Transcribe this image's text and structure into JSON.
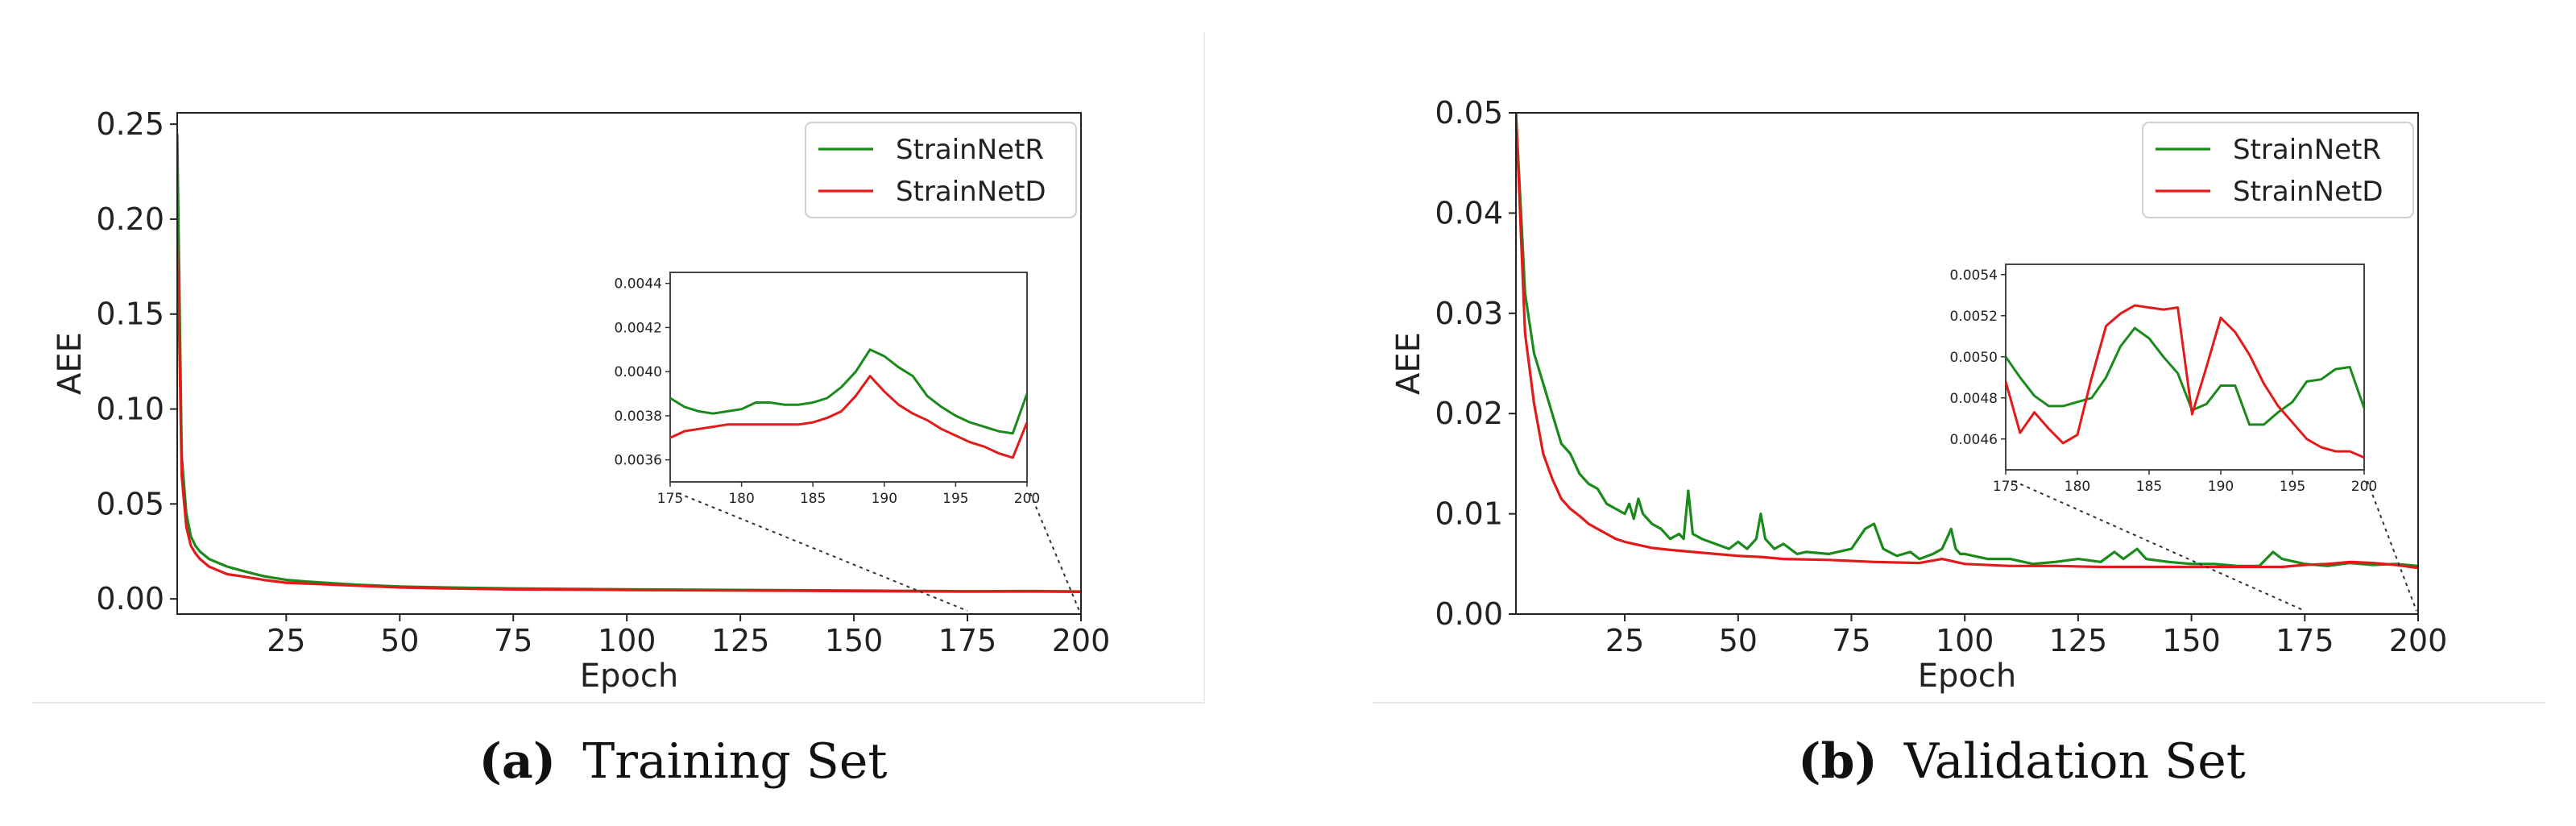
{
  "panels": [
    {
      "caption_letter": "(a)",
      "caption_text": "Training Set",
      "chart_data": {
        "type": "line",
        "title": "",
        "xlabel": "Epoch",
        "ylabel": "AEE",
        "xlim": [
          1,
          200
        ],
        "ylim": [
          -0.008,
          0.256
        ],
        "xticks": [
          25,
          50,
          75,
          100,
          125,
          150,
          175,
          200
        ],
        "xtick_labels": [
          "25",
          "50",
          "75",
          "100",
          "125",
          "150",
          "175",
          "200"
        ],
        "yticks": [
          0.0,
          0.05,
          0.1,
          0.15,
          0.2,
          0.25
        ],
        "ytick_labels": [
          "0.00",
          "0.05",
          "0.10",
          "0.15",
          "0.20",
          "0.25"
        ],
        "legend": "top-right",
        "series": [
          {
            "name": "StrainNetR",
            "color": "#1a8a1a",
            "x": [
              1,
              2,
              3,
              4,
              5,
              6,
              7,
              8,
              10,
              12,
              15,
              20,
              25,
              30,
              40,
              50,
              60,
              75,
              100,
              125,
              150,
              175,
              190,
              200
            ],
            "y": [
              0.245,
              0.075,
              0.045,
              0.033,
              0.028,
              0.025,
              0.023,
              0.021,
              0.019,
              0.017,
              0.015,
              0.012,
              0.01,
              0.009,
              0.0075,
              0.0065,
              0.006,
              0.0055,
              0.005,
              0.0047,
              0.0044,
              0.004,
              0.0041,
              0.0039
            ]
          },
          {
            "name": "StrainNetD",
            "color": "#e31a1a",
            "x": [
              1,
              2,
              3,
              4,
              5,
              6,
              7,
              8,
              10,
              12,
              15,
              20,
              25,
              30,
              40,
              50,
              60,
              75,
              100,
              125,
              150,
              175,
              190,
              200
            ],
            "y": [
              0.2,
              0.065,
              0.038,
              0.028,
              0.024,
              0.021,
              0.019,
              0.017,
              0.015,
              0.013,
              0.012,
              0.01,
              0.0085,
              0.008,
              0.007,
              0.006,
              0.0055,
              0.005,
              0.0047,
              0.0044,
              0.0041,
              0.0038,
              0.0039,
              0.0037
            ]
          }
        ],
        "inset": {
          "xlim": [
            175,
            200
          ],
          "ylim": [
            0.0035,
            0.00445
          ],
          "xticks": [
            175,
            180,
            185,
            190,
            195,
            200
          ],
          "xtick_labels": [
            "175",
            "180",
            "185",
            "190",
            "195",
            "200"
          ],
          "yticks": [
            0.0036,
            0.0038,
            0.004,
            0.0042,
            0.0044
          ],
          "ytick_labels": [
            "0.0036",
            "0.0038",
            "0.0040",
            "0.0042",
            "0.0044"
          ],
          "series": [
            {
              "name": "StrainNetR",
              "color": "#1a8a1a",
              "x": [
                175,
                176,
                177,
                178,
                179,
                180,
                181,
                182,
                183,
                184,
                185,
                186,
                187,
                188,
                189,
                190,
                191,
                192,
                193,
                194,
                195,
                196,
                197,
                198,
                199,
                200
              ],
              "y": [
                0.00388,
                0.00384,
                0.00382,
                0.00381,
                0.00382,
                0.00383,
                0.00386,
                0.00386,
                0.00385,
                0.00385,
                0.00386,
                0.00388,
                0.00393,
                0.004,
                0.0041,
                0.00407,
                0.00402,
                0.00398,
                0.00389,
                0.00384,
                0.0038,
                0.00377,
                0.00375,
                0.00373,
                0.00372,
                0.0039
              ]
            },
            {
              "name": "StrainNetD",
              "color": "#e31a1a",
              "x": [
                175,
                176,
                177,
                178,
                179,
                180,
                181,
                182,
                183,
                184,
                185,
                186,
                187,
                188,
                189,
                190,
                191,
                192,
                193,
                194,
                195,
                196,
                197,
                198,
                199,
                200
              ],
              "y": [
                0.0037,
                0.00373,
                0.00374,
                0.00375,
                0.00376,
                0.00376,
                0.00376,
                0.00376,
                0.00376,
                0.00376,
                0.00377,
                0.00379,
                0.00382,
                0.00389,
                0.00398,
                0.00391,
                0.00385,
                0.00381,
                0.00378,
                0.00374,
                0.00371,
                0.00368,
                0.00366,
                0.00363,
                0.00361,
                0.00377
              ]
            }
          ]
        }
      }
    },
    {
      "caption_letter": "(b)",
      "caption_text": "Validation Set",
      "chart_data": {
        "type": "line",
        "title": "",
        "xlabel": "Epoch",
        "ylabel": "AEE",
        "xlim": [
          1,
          200
        ],
        "ylim": [
          0.0,
          0.05
        ],
        "xticks": [
          25,
          50,
          75,
          100,
          125,
          150,
          175,
          200
        ],
        "xtick_labels": [
          "25",
          "50",
          "75",
          "100",
          "125",
          "150",
          "175",
          "200"
        ],
        "yticks": [
          0.0,
          0.01,
          0.02,
          0.03,
          0.04,
          0.05
        ],
        "ytick_labels": [
          "0.00",
          "0.01",
          "0.02",
          "0.03",
          "0.04",
          "0.05"
        ],
        "legend": "top-right",
        "series": [
          {
            "name": "StrainNetR",
            "color": "#1a8a1a",
            "x": [
              1,
              3,
              5,
              7,
              9,
              11,
              13,
              15,
              17,
              19,
              21,
              23,
              25,
              26,
              27,
              28,
              29,
              31,
              33,
              35,
              37,
              38,
              39,
              40,
              42,
              45,
              48,
              50,
              52,
              54,
              55,
              56,
              58,
              60,
              63,
              65,
              70,
              75,
              78,
              80,
              82,
              85,
              88,
              90,
              93,
              95,
              97,
              98,
              99,
              100,
              105,
              110,
              115,
              120,
              125,
              130,
              133,
              135,
              138,
              140,
              145,
              150,
              155,
              160,
              165,
              168,
              170,
              175,
              180,
              185,
              190,
              195,
              200
            ],
            "y": [
              0.05,
              0.032,
              0.026,
              0.023,
              0.02,
              0.017,
              0.016,
              0.014,
              0.013,
              0.0125,
              0.011,
              0.0105,
              0.01,
              0.011,
              0.0095,
              0.0115,
              0.01,
              0.009,
              0.0085,
              0.0075,
              0.008,
              0.0075,
              0.0123,
              0.008,
              0.0075,
              0.007,
              0.0065,
              0.0072,
              0.0065,
              0.0075,
              0.01,
              0.0075,
              0.0065,
              0.007,
              0.006,
              0.0062,
              0.006,
              0.0065,
              0.0085,
              0.009,
              0.0065,
              0.0058,
              0.0062,
              0.0055,
              0.006,
              0.0065,
              0.0085,
              0.0065,
              0.006,
              0.006,
              0.0055,
              0.0055,
              0.005,
              0.0052,
              0.0055,
              0.0052,
              0.0062,
              0.0055,
              0.0065,
              0.0055,
              0.0052,
              0.005,
              0.005,
              0.0048,
              0.0048,
              0.0062,
              0.0055,
              0.005,
              0.0048,
              0.0051,
              0.0049,
              0.005,
              0.0048
            ]
          },
          {
            "name": "StrainNetD",
            "color": "#e31a1a",
            "x": [
              1,
              3,
              5,
              7,
              9,
              11,
              13,
              15,
              17,
              19,
              21,
              23,
              25,
              27,
              29,
              31,
              35,
              40,
              45,
              50,
              55,
              60,
              70,
              80,
              90,
              95,
              100,
              110,
              120,
              130,
              140,
              150,
              160,
              170,
              175,
              180,
              185,
              190,
              195,
              200
            ],
            "y": [
              0.05,
              0.028,
              0.021,
              0.016,
              0.0135,
              0.0115,
              0.0105,
              0.0098,
              0.009,
              0.0085,
              0.008,
              0.0075,
              0.0072,
              0.007,
              0.0068,
              0.0066,
              0.0064,
              0.0062,
              0.006,
              0.0058,
              0.0057,
              0.0055,
              0.0054,
              0.0052,
              0.0051,
              0.0055,
              0.005,
              0.0048,
              0.0048,
              0.0047,
              0.0047,
              0.0047,
              0.0047,
              0.0047,
              0.0049,
              0.005,
              0.0052,
              0.0051,
              0.0049,
              0.0046
            ]
          }
        ],
        "inset": {
          "xlim": [
            175,
            200
          ],
          "ylim": [
            0.00445,
            0.00545
          ],
          "xticks": [
            175,
            180,
            185,
            190,
            195,
            200
          ],
          "xtick_labels": [
            "175",
            "180",
            "185",
            "190",
            "195",
            "200"
          ],
          "yticks": [
            0.0046,
            0.0048,
            0.005,
            0.0052,
            0.0054
          ],
          "ytick_labels": [
            "0.0046",
            "0.0048",
            "0.0050",
            "0.0052",
            "0.0054"
          ],
          "series": [
            {
              "name": "StrainNetR",
              "color": "#1a8a1a",
              "x": [
                175,
                176,
                177,
                178,
                179,
                180,
                181,
                182,
                183,
                184,
                185,
                186,
                187,
                188,
                189,
                190,
                191,
                192,
                193,
                194,
                195,
                196,
                197,
                198,
                199,
                200
              ],
              "y": [
                0.005,
                0.0049,
                0.00481,
                0.00476,
                0.00476,
                0.00478,
                0.0048,
                0.0049,
                0.00505,
                0.00514,
                0.00509,
                0.005,
                0.00492,
                0.00474,
                0.00477,
                0.00486,
                0.00486,
                0.00467,
                0.00467,
                0.00473,
                0.00478,
                0.00488,
                0.00489,
                0.00494,
                0.00495,
                0.00475
              ]
            },
            {
              "name": "StrainNetD",
              "color": "#e31a1a",
              "x": [
                175,
                176,
                177,
                178,
                179,
                180,
                181,
                182,
                183,
                184,
                185,
                186,
                187,
                188,
                189,
                190,
                191,
                192,
                193,
                194,
                195,
                196,
                197,
                198,
                199,
                200
              ],
              "y": [
                0.00488,
                0.00463,
                0.00473,
                0.00465,
                0.00458,
                0.00462,
                0.0049,
                0.00515,
                0.00521,
                0.00525,
                0.00524,
                0.00523,
                0.00524,
                0.00472,
                0.00495,
                0.00519,
                0.00512,
                0.00501,
                0.00487,
                0.00476,
                0.00468,
                0.0046,
                0.00456,
                0.00454,
                0.00454,
                0.00451
              ]
            }
          ]
        }
      }
    }
  ]
}
